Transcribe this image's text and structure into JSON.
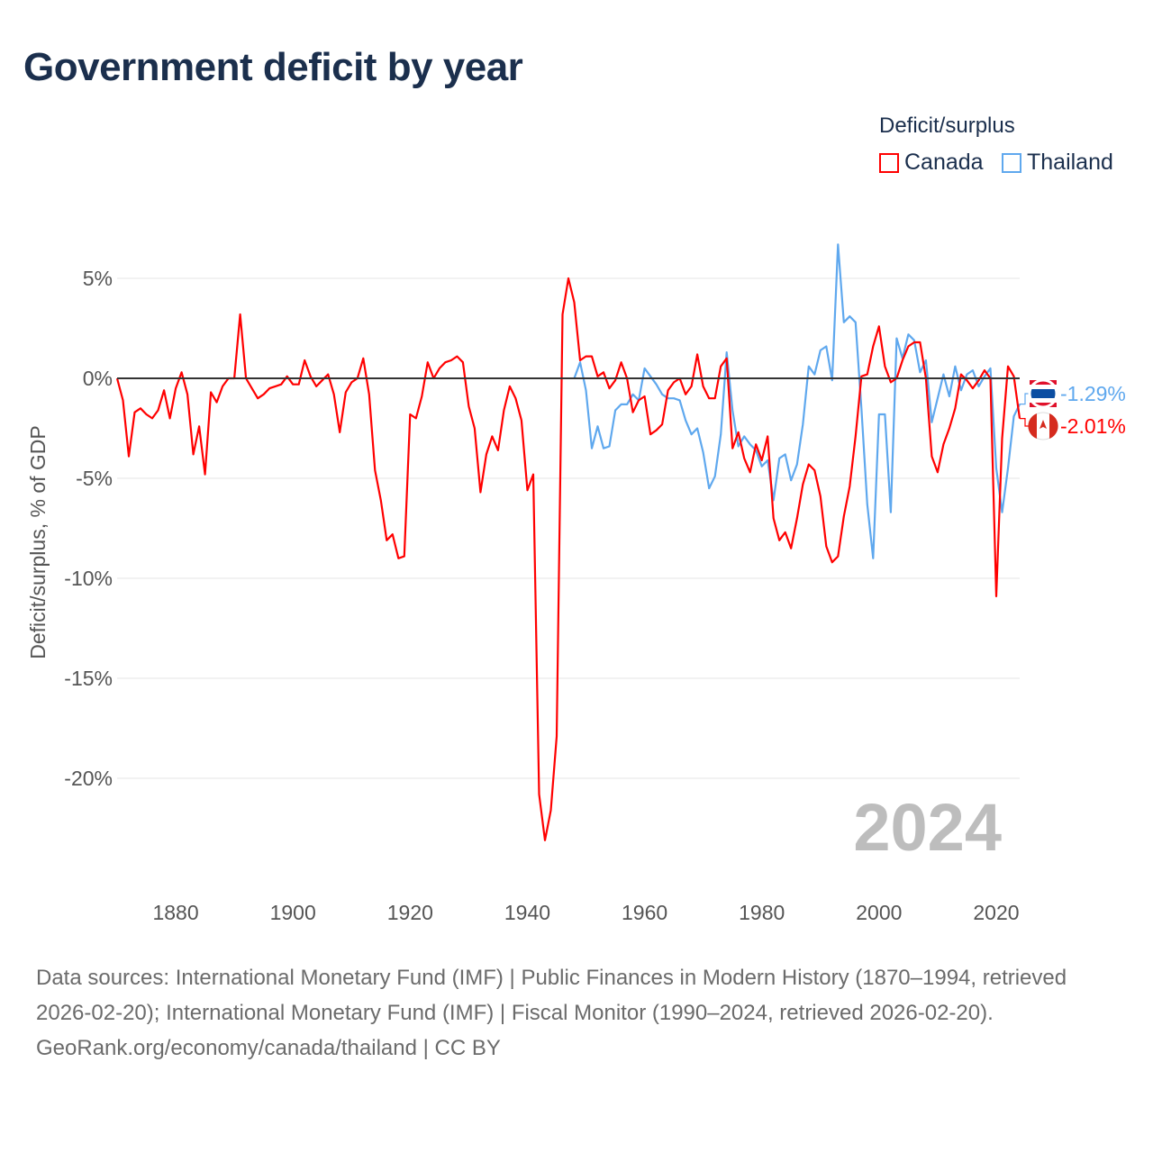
{
  "title": "Government deficit by year",
  "legend": {
    "title": "Deficit/surplus",
    "items": [
      "Canada",
      "Thailand"
    ]
  },
  "footer": {
    "sources": "Data sources: International Monetary Fund (IMF) | Public Finances in Modern History (1870–1994, retrieved 2026-02-20); International Monetary Fund (IMF) | Fiscal Monitor (1990–2024, retrieved 2026-02-20).",
    "credit": "GeoRank.org/economy/canada/thailand | CC BY"
  },
  "colors": {
    "Canada": "#ff0000",
    "Thailand": "#5fa8ee",
    "zero_line": "#333333",
    "grid": "#e6e6e6",
    "watermark": "#bdbdbd"
  },
  "chart_data": {
    "type": "line",
    "title": "Government deficit by year",
    "xlabel": "",
    "ylabel": "Deficit/surplus, % of GDP",
    "xlim": [
      1870,
      2024
    ],
    "ylim": [
      -25,
      7.5
    ],
    "x_ticks": [
      1880,
      1900,
      1920,
      1940,
      1960,
      1980,
      2000,
      2020
    ],
    "y_ticks": [
      5,
      0,
      -5,
      -10,
      -15,
      -20
    ],
    "y_tick_labels": [
      "5%",
      "0%",
      "-5%",
      "-10%",
      "-15%",
      "-20%"
    ],
    "grid": true,
    "legend_position": "top-right",
    "current_year_label": "2024",
    "end_labels": {
      "Thailand": "-1.29%",
      "Canada": "-2.01%"
    },
    "series": [
      {
        "name": "Canada",
        "start_year": 1870,
        "values": [
          0,
          -1.1,
          -3.9,
          -1.7,
          -1.5,
          -1.8,
          -2.0,
          -1.6,
          -0.6,
          -2.0,
          -0.5,
          0.3,
          -0.8,
          -3.8,
          -2.4,
          -4.8,
          -0.7,
          -1.2,
          -0.4,
          0,
          0,
          3.2,
          0,
          -0.5,
          -1.0,
          -0.8,
          -0.5,
          -0.4,
          -0.3,
          0.1,
          -0.3,
          -0.3,
          0.9,
          0.1,
          -0.4,
          -0.1,
          0.2,
          -0.8,
          -2.7,
          -0.7,
          -0.2,
          0,
          1.0,
          -0.8,
          -4.6,
          -6.1,
          -8.1,
          -7.8,
          -9.0,
          -8.9,
          -1.8,
          -2.0,
          -0.9,
          0.8,
          0,
          0.5,
          0.8,
          0.9,
          1.1,
          0.8,
          -1.4,
          -2.5,
          -5.7,
          -3.8,
          -2.9,
          -3.6,
          -1.6,
          -0.4,
          -1.0,
          -2.1,
          -5.6,
          -4.8,
          -20.8,
          -23.1,
          -21.6,
          -17.9,
          3.2,
          5.0,
          3.8,
          0.9,
          1.1,
          1.1,
          0.1,
          0.3,
          -0.5,
          -0.1,
          0.8,
          0,
          -1.7,
          -1.1,
          -0.9,
          -2.8,
          -2.6,
          -2.3,
          -0.6,
          -0.2,
          0,
          -0.8,
          -0.4,
          1.2,
          -0.4,
          -1.0,
          -1.0,
          0.6,
          1.0,
          -3.5,
          -2.7,
          -4.0,
          -4.7,
          -3.3,
          -4.1,
          -2.9,
          -7.0,
          -8.1,
          -7.7,
          -8.5,
          -7.0,
          -5.3,
          -4.3,
          -4.6,
          -5.9,
          -8.4,
          -9.2,
          -8.9,
          -6.9,
          -5.4,
          -2.9,
          0.1,
          0.2,
          1.6,
          2.6,
          0.6,
          -0.2,
          0,
          0.9,
          1.6,
          1.8,
          1.8,
          0,
          -3.9,
          -4.7,
          -3.3,
          -2.5,
          -1.5,
          0.2,
          -0.1,
          -0.5,
          -0.1,
          0.4,
          0,
          -10.9,
          -3.0,
          0.6,
          0.1,
          -2.01
        ]
      },
      {
        "name": "Thailand",
        "start_year": 1948,
        "values": [
          0,
          0.8,
          -0.6,
          -3.5,
          -2.4,
          -3.5,
          -3.4,
          -1.6,
          -1.3,
          -1.3,
          -0.8,
          -1.1,
          0.5,
          0.1,
          -0.3,
          -0.8,
          -1.0,
          -1.0,
          -1.1,
          -2.1,
          -2.8,
          -2.5,
          -3.7,
          -5.5,
          -4.9,
          -2.8,
          1.3,
          -1.6,
          -3.4,
          -2.9,
          -3.3,
          -3.6,
          -4.4,
          -4.1,
          -6.1,
          -4.0,
          -3.8,
          -5.1,
          -4.3,
          -2.3,
          0.6,
          0.2,
          1.4,
          1.6,
          -0.1,
          6.7,
          2.8,
          3.1,
          2.8,
          -1.5,
          -6.3,
          -9.0,
          -1.8,
          -1.8,
          -6.7,
          2.0,
          1.0,
          2.2,
          1.9,
          0.3,
          0.9,
          -2.2,
          -1.0,
          0.2,
          -0.9,
          0.6,
          -0.6,
          0.2,
          0.4,
          -0.4,
          0.1,
          0.5,
          -4.5,
          -6.7,
          -4.5,
          -1.9,
          -1.29
        ]
      }
    ]
  }
}
